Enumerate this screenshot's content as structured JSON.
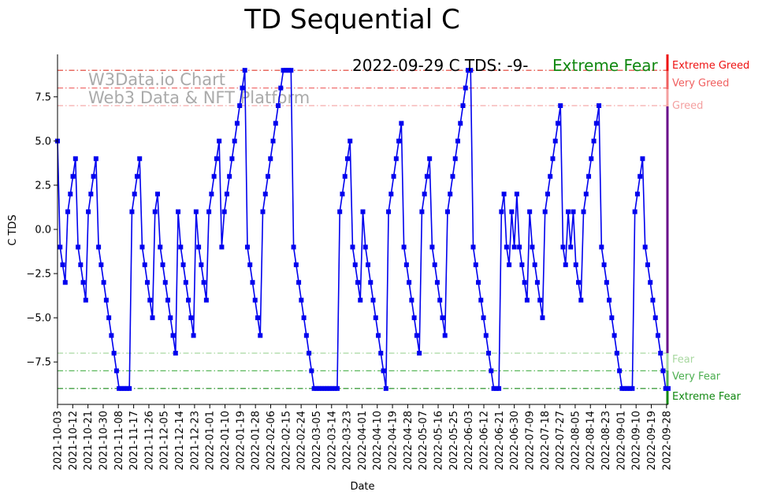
{
  "chart_data": {
    "type": "line",
    "title": "TD Sequential C",
    "xlabel": "Date",
    "ylabel": "C TDS",
    "ylim": [
      -9.9,
      9.9
    ],
    "yticks": [
      5.0,
      2.5,
      0.0,
      -2.5,
      -5.0,
      -7.5
    ],
    "ytick_labels": [
      "5.0",
      "2.5",
      "0.0",
      "−2.5",
      "−5.0",
      "−7.5"
    ],
    "ytick_top_label": "7.5",
    "xtick_labels": [
      "2021-10-03",
      "2021-10-12",
      "2021-10-21",
      "2021-10-30",
      "2021-11-08",
      "2021-11-17",
      "2021-11-26",
      "2021-12-05",
      "2021-12-14",
      "2021-12-23",
      "2022-01-01",
      "2022-01-10",
      "2022-01-19",
      "2022-01-28",
      "2022-02-06",
      "2022-02-15",
      "2022-02-24",
      "2022-03-05",
      "2022-03-14",
      "2022-03-23",
      "2022-04-01",
      "2022-04-10",
      "2022-04-19",
      "2022-04-28",
      "2022-05-07",
      "2022-05-16",
      "2022-05-25",
      "2022-06-03",
      "2022-06-12",
      "2022-06-21",
      "2022-06-30",
      "2022-07-09",
      "2022-07-18",
      "2022-07-27",
      "2022-08-05",
      "2022-08-14",
      "2022-08-23",
      "2022-09-01",
      "2022-09-10",
      "2022-09-19",
      "2022-09-28"
    ],
    "start_date": "2021-10-03",
    "end_date": "2022-09-29",
    "series": [
      {
        "color": "#0000ee",
        "marker": "square",
        "values": [
          5,
          -1,
          -2,
          -3,
          1,
          2,
          3,
          4,
          -1,
          -2,
          -3,
          -4,
          1,
          2,
          3,
          4,
          -1,
          -2,
          -3,
          -4,
          -5,
          -6,
          -7,
          -8,
          -9,
          -9,
          -9,
          -9,
          -9,
          1,
          2,
          3,
          4,
          -1,
          -2,
          -3,
          -4,
          -5,
          1,
          2,
          -1,
          -2,
          -3,
          -4,
          -5,
          -6,
          -7,
          1,
          -1,
          -2,
          -3,
          -4,
          -5,
          -6,
          1,
          -1,
          -2,
          -3,
          -4,
          1,
          2,
          3,
          4,
          5,
          -1,
          1,
          2,
          3,
          4,
          5,
          6,
          7,
          8,
          9,
          -1,
          -2,
          -3,
          -4,
          -5,
          -6,
          1,
          2,
          3,
          4,
          5,
          6,
          7,
          8,
          9,
          9,
          9,
          9,
          -1,
          -2,
          -3,
          -4,
          -5,
          -6,
          -7,
          -8,
          -9,
          -9,
          -9,
          -9,
          -9,
          -9,
          -9,
          -9,
          -9,
          -9,
          1,
          2,
          3,
          4,
          5,
          -1,
          -2,
          -3,
          -4,
          1,
          -1,
          -2,
          -3,
          -4,
          -5,
          -6,
          -7,
          -8,
          -9,
          1,
          2,
          3,
          4,
          5,
          6,
          -1,
          -2,
          -3,
          -4,
          -5,
          -6,
          -7,
          1,
          2,
          3,
          4,
          -1,
          -2,
          -3,
          -4,
          -5,
          -6,
          1,
          2,
          3,
          4,
          5,
          6,
          7,
          8,
          9,
          9,
          -1,
          -2,
          -3,
          -4,
          -5,
          -6,
          -7,
          -8,
          -9,
          -9,
          -9,
          1,
          2,
          -1,
          -2,
          1,
          -1,
          2,
          -1,
          -2,
          -3,
          -4,
          1,
          -1,
          -2,
          -3,
          -4,
          -5,
          1,
          2,
          3,
          4,
          5,
          6,
          7,
          -1,
          -2,
          1,
          -1,
          1,
          -2,
          -3,
          -4,
          1,
          2,
          3,
          4,
          5,
          6,
          7,
          -1,
          -2,
          -3,
          -4,
          -5,
          -6,
          -7,
          -8,
          -9,
          -9,
          -9,
          -9,
          -9,
          1,
          2,
          3,
          4,
          -1,
          -2,
          -3,
          -4,
          -5,
          -6,
          -7,
          -8,
          -9,
          -9
        ]
      }
    ],
    "reference_lines": [
      {
        "value": 9,
        "color": "#e0392b",
        "label": "Extreme Greed",
        "label_color": "#ee1111"
      },
      {
        "value": 8,
        "color": "#f07070",
        "label": "Very Greed",
        "label_color": "#f06060"
      },
      {
        "value": 7,
        "color": "#f5aaaa",
        "label": "Greed",
        "label_color": "#f4a0a0"
      },
      {
        "value": -7,
        "color": "#a8d8a0",
        "label": "Fear",
        "label_color": "#a8d8a0"
      },
      {
        "value": -8,
        "color": "#5cb85c",
        "label": "Very Fear",
        "label_color": "#4caf50"
      },
      {
        "value": -9,
        "color": "#1a8a1a",
        "label": "Extreme Fear",
        "label_color": "#118811"
      }
    ],
    "annotation": {
      "text": "2022-09-29 C TDS: -9-",
      "status": "Extreme Fear",
      "status_color": "#118811"
    },
    "watermark": [
      "W3Data.io Chart",
      "Web3 Data & NFT Platform"
    ],
    "grid": false,
    "legend": "none"
  }
}
